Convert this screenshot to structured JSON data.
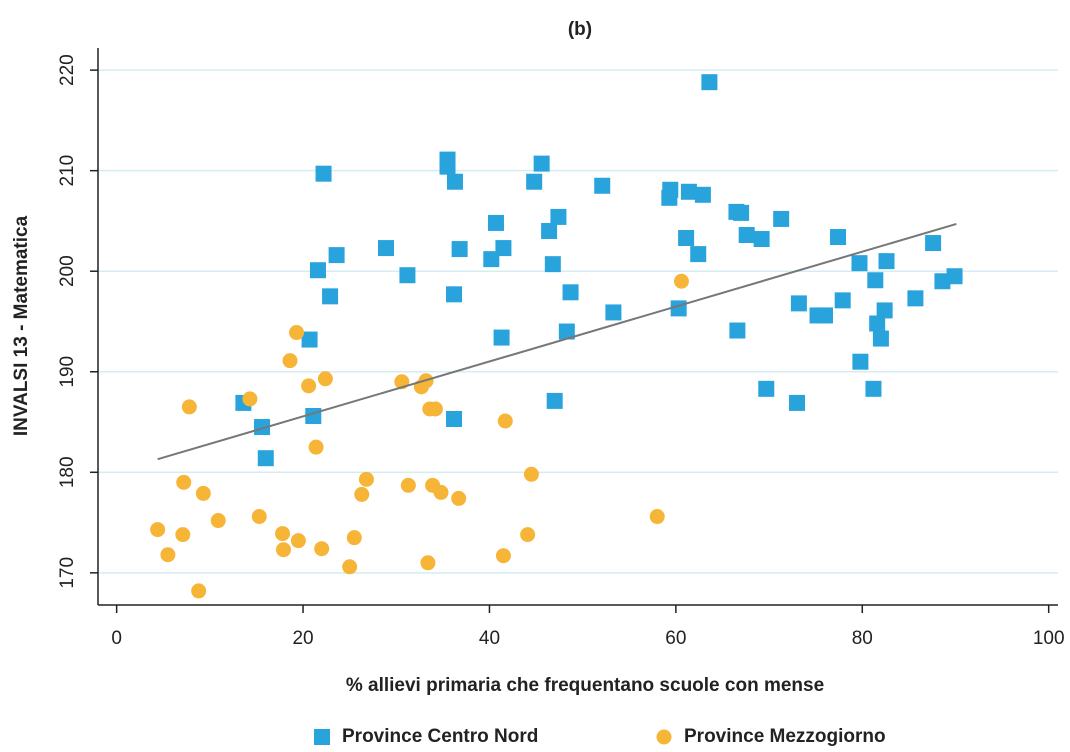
{
  "chart_data": {
    "type": "scatter",
    "title": "(b)",
    "x_label": "% allievi primaria che frequentano scuole con mense",
    "y_label": "INVALSI 13 - Matematica",
    "xlim": [
      -2,
      101
    ],
    "ylim": [
      166.8,
      222.2
    ],
    "xticks": [
      0,
      20,
      40,
      60,
      80,
      100
    ],
    "yticks": [
      170,
      180,
      190,
      200,
      210,
      220
    ],
    "grid": true,
    "legend": "bottom",
    "series": [
      {
        "name": "Province Centro Nord",
        "color": "#29a3db",
        "marker": "square",
        "x": [
          63.6,
          22.2,
          35.5,
          35.5,
          36.3,
          45.6,
          44.8,
          52.1,
          59.4,
          59.3,
          61.4,
          62.9,
          66.5,
          67.0,
          71.3,
          40.7,
          47.4,
          46.4,
          67.6,
          69.2,
          61.1,
          77.4,
          87.6,
          28.9,
          36.8,
          41.5,
          23.6,
          62.4,
          40.2,
          46.8,
          21.6,
          31.2,
          79.7,
          82.6,
          89.9,
          81.4,
          88.6,
          48.7,
          22.9,
          36.2,
          85.7,
          77.9,
          73.2,
          60.3,
          53.3,
          75.2,
          76.0,
          82.4,
          81.6,
          66.6,
          48.3,
          82.0,
          41.3,
          20.7,
          79.8,
          69.7,
          81.2,
          73.0,
          47.0,
          13.6,
          21.1,
          36.2,
          15.6,
          16.0
        ],
        "values": [
          218.8,
          209.7,
          211.1,
          210.4,
          208.9,
          210.7,
          208.9,
          208.5,
          208.1,
          207.3,
          207.9,
          207.6,
          205.9,
          205.8,
          205.2,
          204.8,
          205.4,
          204.0,
          203.6,
          203.2,
          203.3,
          203.4,
          202.8,
          202.3,
          202.2,
          202.3,
          201.6,
          201.7,
          201.2,
          200.7,
          200.1,
          199.6,
          200.8,
          201.0,
          199.5,
          199.1,
          199.0,
          197.9,
          197.5,
          197.7,
          197.3,
          197.1,
          196.8,
          196.3,
          195.9,
          195.6,
          195.6,
          196.1,
          194.8,
          194.1,
          194.0,
          193.3,
          193.4,
          193.2,
          191.0,
          188.3,
          188.3,
          186.9,
          187.1,
          186.9,
          185.6,
          185.3,
          184.5,
          181.4
        ]
      },
      {
        "name": "Province Mezzogiorno",
        "color": "#f7b538",
        "marker": "circle",
        "x": [
          60.6,
          19.3,
          18.6,
          20.6,
          22.4,
          30.6,
          32.7,
          33.2,
          14.3,
          7.8,
          33.6,
          34.2,
          41.7,
          21.4,
          44.5,
          26.8,
          7.2,
          31.3,
          33.9,
          34.8,
          9.3,
          26.3,
          36.7,
          15.3,
          10.9,
          58.0,
          4.4,
          7.1,
          17.8,
          44.1,
          19.5,
          25.5,
          22.0,
          17.9,
          5.5,
          41.5,
          33.4,
          25.0,
          8.8
        ],
        "values": [
          199.0,
          193.9,
          191.1,
          188.6,
          189.3,
          189.0,
          188.5,
          189.1,
          187.3,
          186.5,
          186.3,
          186.3,
          185.1,
          182.5,
          179.8,
          179.3,
          179.0,
          178.7,
          178.7,
          178.0,
          177.9,
          177.8,
          177.4,
          175.6,
          175.2,
          175.6,
          174.3,
          173.8,
          173.9,
          173.8,
          173.2,
          173.5,
          172.4,
          172.3,
          171.8,
          171.7,
          171.0,
          170.6,
          168.2
        ]
      }
    ],
    "trend": {
      "color": "#777777",
      "x": [
        4.4,
        90.1
      ],
      "values": [
        181.3,
        204.7
      ]
    }
  }
}
